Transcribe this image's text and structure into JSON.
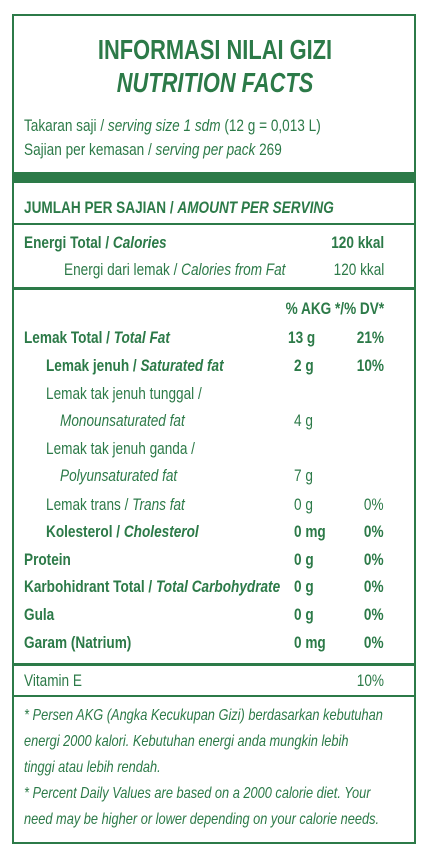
{
  "header": {
    "title": "INFORMASI NILAI GIZI",
    "subtitle": "NUTRITION FACTS"
  },
  "serving": {
    "size": [
      "Takaran saji / ",
      "serving size 1 sdm",
      " (12 g = 0,013 L)"
    ],
    "per_pack": [
      "Sajian per kemasan / ",
      "serving per pack",
      " 269"
    ]
  },
  "amount_header": [
    "JUMLAH PER SAJIAN / ",
    "AMOUNT PER SERVING"
  ],
  "energy": {
    "total": {
      "label": [
        "Energi Total / ",
        "Calories"
      ],
      "amount": "120 kkal"
    },
    "from_fat": {
      "label": [
        "Energi dari lemak / ",
        "Calories from Fat"
      ],
      "amount": "120 kkal"
    }
  },
  "dv_header": "% AKG */% DV*",
  "nutrients": [
    {
      "label": [
        "Lemak Total / ",
        "Total Fat"
      ],
      "amount": "13 g",
      "dv": "21%"
    },
    {
      "label": [
        "Lemak jenuh / ",
        "Saturated fat"
      ],
      "amount": "2 g",
      "dv": "10%"
    },
    {
      "label": [
        "Lemak tak jenuh tunggal /",
        "Monounsaturated fat"
      ],
      "amount": "4 g"
    },
    {
      "label": [
        "Lemak tak jenuh ganda /",
        "Polyunsaturated fat"
      ],
      "amount": "7 g"
    },
    {
      "label": [
        "Lemak trans / ",
        "Trans fat"
      ],
      "amount": "0 g",
      "dv": "0%"
    },
    {
      "label": [
        "Kolesterol / ",
        "Cholesterol"
      ],
      "amount": "0 mg",
      "dv": "0%"
    },
    {
      "label": [
        "Protein"
      ],
      "amount": "0 g",
      "dv": "0%"
    },
    {
      "label": [
        "Karbohidrant Total / ",
        "Total Carbohydrate"
      ],
      "amount": "0 g",
      "dv": "0%"
    },
    {
      "label": [
        "Gula"
      ],
      "amount": "0 g",
      "dv": "0%"
    },
    {
      "label": [
        "Garam (Natrium)"
      ],
      "amount": "0 mg",
      "dv": "0%"
    }
  ],
  "vitamin": {
    "label": "Vitamin E",
    "dv": "10%"
  },
  "footnotes": [
    "* Persen AKG (Angka Kecukupan Gizi) berdasarkan kebutuhan",
    "energi 2000 kalori. Kebutuhan energi anda mungkin lebih",
    "tinggi atau lebih rendah.",
    "* Percent Daily Values are based on a 2000 calorie diet. Your",
    "need may be higher or lower depending on your calorie needs."
  ]
}
